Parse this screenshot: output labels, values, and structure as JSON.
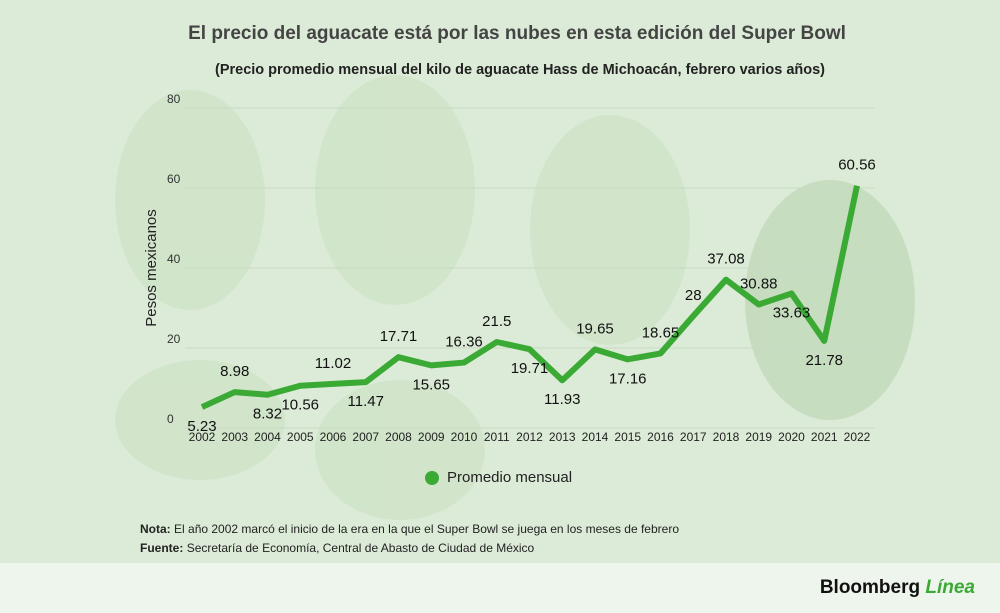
{
  "chart_data": {
    "type": "line",
    "title": "El precio del aguacate está por las nubes en esta edición del Super Bowl",
    "subtitle": "(Precio promedio mensual del kilo de aguacate Hass de Michoacán, febrero varios años)",
    "y_label": "Pesos mexicanos",
    "categories": [
      "2002",
      "2003",
      "2004",
      "2005",
      "2006",
      "2007",
      "2008",
      "2009",
      "2010",
      "2011",
      "2012",
      "2013",
      "2014",
      "2015",
      "2016",
      "2017",
      "2018",
      "2019",
      "2020",
      "2021",
      "2022"
    ],
    "series": [
      {
        "name": "Promedio mensual",
        "color": "#3aaa35",
        "values": [
          5.23,
          8.98,
          8.32,
          10.56,
          11.02,
          11.47,
          17.71,
          15.65,
          16.36,
          21.5,
          19.71,
          11.93,
          19.65,
          17.16,
          18.65,
          28,
          37.08,
          30.88,
          33.63,
          21.78,
          60.56
        ]
      }
    ],
    "ylim": [
      0,
      80
    ],
    "yticks": [
      0,
      20,
      40,
      60,
      80
    ],
    "grid": true,
    "note": {
      "label": "Nota:",
      "text": "El año 2002 marcó el inicio de la era en la que el Super Bowl se juega en los meses de febrero"
    },
    "source": {
      "label": "Fuente:",
      "text": "Secretaría de Economía, Central de Abasto de Ciudad de México"
    },
    "brand": {
      "name": "Bloomberg",
      "suffix": "Línea"
    }
  }
}
